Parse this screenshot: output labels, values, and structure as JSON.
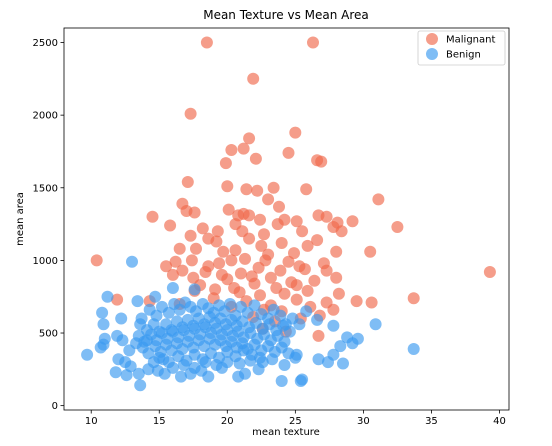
{
  "chart_data": {
    "type": "scatter",
    "title": "Mean Texture vs Mean Area",
    "xlabel": "mean texture",
    "ylabel": "mean area",
    "xlim": [
      8.0,
      40.7
    ],
    "ylim": [
      -30,
      2600
    ],
    "xticks": [
      "10",
      "15",
      "20",
      "25",
      "30",
      "35",
      "40"
    ],
    "yticks": [
      "0",
      "500",
      "1000",
      "1500",
      "2000",
      "2500"
    ],
    "grid": false,
    "legend_position": "top-right",
    "series": [
      {
        "name": "Malignant",
        "color": "#f0684b",
        "points": [
          [
            18.5,
            2500
          ],
          [
            26.3,
            2500
          ],
          [
            21.9,
            2250
          ],
          [
            17.3,
            2010
          ],
          [
            25.0,
            1880
          ],
          [
            21.6,
            1840
          ],
          [
            21.2,
            1770
          ],
          [
            24.5,
            1740
          ],
          [
            20.3,
            1760
          ],
          [
            22.1,
            1700
          ],
          [
            26.6,
            1690
          ],
          [
            26.9,
            1680
          ],
          [
            19.9,
            1670
          ],
          [
            17.1,
            1540
          ],
          [
            20.0,
            1510
          ],
          [
            21.4,
            1490
          ],
          [
            22.2,
            1480
          ],
          [
            23.4,
            1500
          ],
          [
            25.8,
            1490
          ],
          [
            16.7,
            1390
          ],
          [
            23.0,
            1420
          ],
          [
            31.1,
            1420
          ],
          [
            20.1,
            1350
          ],
          [
            23.8,
            1370
          ],
          [
            17.0,
            1340
          ],
          [
            17.6,
            1330
          ],
          [
            21.2,
            1320
          ],
          [
            14.5,
            1300
          ],
          [
            15.8,
            1240
          ],
          [
            21.6,
            1310
          ],
          [
            20.8,
            1310
          ],
          [
            22.4,
            1280
          ],
          [
            24.2,
            1280
          ],
          [
            25.1,
            1270
          ],
          [
            26.7,
            1310
          ],
          [
            27.3,
            1300
          ],
          [
            28.1,
            1260
          ],
          [
            29.2,
            1270
          ],
          [
            18.2,
            1220
          ],
          [
            19.3,
            1200
          ],
          [
            20.6,
            1250
          ],
          [
            21.1,
            1200
          ],
          [
            23.7,
            1250
          ],
          [
            25.5,
            1200
          ],
          [
            27.8,
            1230
          ],
          [
            28.4,
            1200
          ],
          [
            32.5,
            1230
          ],
          [
            17.3,
            1170
          ],
          [
            18.6,
            1150
          ],
          [
            19.2,
            1130
          ],
          [
            21.6,
            1150
          ],
          [
            22.7,
            1180
          ],
          [
            24.0,
            1120
          ],
          [
            26.6,
            1140
          ],
          [
            16.5,
            1080
          ],
          [
            17.7,
            1080
          ],
          [
            19.7,
            1060
          ],
          [
            20.6,
            1070
          ],
          [
            22.5,
            1100
          ],
          [
            23.0,
            1040
          ],
          [
            24.9,
            1050
          ],
          [
            25.9,
            1100
          ],
          [
            28.0,
            1060
          ],
          [
            30.5,
            1060
          ],
          [
            10.4,
            1000
          ],
          [
            16.2,
            990
          ],
          [
            17.4,
            1000
          ],
          [
            18.6,
            960
          ],
          [
            19.4,
            980
          ],
          [
            20.3,
            1000
          ],
          [
            21.3,
            1010
          ],
          [
            22.8,
            1000
          ],
          [
            24.5,
            990
          ],
          [
            25.3,
            960
          ],
          [
            27.1,
            980
          ],
          [
            15.5,
            960
          ],
          [
            16.7,
            930
          ],
          [
            18.4,
            920
          ],
          [
            19.6,
            900
          ],
          [
            21.0,
            910
          ],
          [
            22.3,
            950
          ],
          [
            23.9,
            930
          ],
          [
            25.7,
            940
          ],
          [
            27.3,
            930
          ],
          [
            39.3,
            920
          ],
          [
            16.0,
            900
          ],
          [
            17.5,
            880
          ],
          [
            20.0,
            870
          ],
          [
            21.8,
            890
          ],
          [
            23.2,
            880
          ],
          [
            24.7,
            850
          ],
          [
            26.4,
            860
          ],
          [
            28.0,
            880
          ],
          [
            18.0,
            830
          ],
          [
            19.1,
            800
          ],
          [
            20.5,
            810
          ],
          [
            22.0,
            840
          ],
          [
            23.6,
            810
          ],
          [
            25.1,
            830
          ],
          [
            17.6,
            790
          ],
          [
            20.9,
            780
          ],
          [
            22.4,
            760
          ],
          [
            24.2,
            770
          ],
          [
            25.9,
            790
          ],
          [
            28.2,
            770
          ],
          [
            11.9,
            730
          ],
          [
            14.3,
            720
          ],
          [
            16.5,
            700
          ],
          [
            19.0,
            740
          ],
          [
            21.4,
            720
          ],
          [
            23.2,
            690
          ],
          [
            25.1,
            730
          ],
          [
            27.3,
            710
          ],
          [
            29.5,
            720
          ],
          [
            30.6,
            710
          ],
          [
            33.7,
            740
          ],
          [
            20.3,
            680
          ],
          [
            22.7,
            660
          ],
          [
            24.0,
            650
          ],
          [
            26.1,
            680
          ],
          [
            27.8,
            660
          ],
          [
            21.9,
            610
          ],
          [
            23.5,
            580
          ],
          [
            25.4,
            600
          ],
          [
            26.8,
            620
          ],
          [
            22.6,
            530
          ],
          [
            24.3,
            510
          ],
          [
            26.7,
            480
          ]
        ]
      },
      {
        "name": "Benign",
        "color": "#3b9aef",
        "points": [
          [
            13.0,
            990
          ],
          [
            16.0,
            810
          ],
          [
            17.6,
            800
          ],
          [
            11.2,
            750
          ],
          [
            13.4,
            720
          ],
          [
            14.7,
            750
          ],
          [
            12.2,
            600
          ],
          [
            10.8,
            640
          ],
          [
            10.9,
            560
          ],
          [
            11.0,
            460
          ],
          [
            10.9,
            420
          ],
          [
            10.7,
            400
          ],
          [
            9.7,
            350
          ],
          [
            11.9,
            480
          ],
          [
            12.3,
            450
          ],
          [
            13.3,
            430
          ],
          [
            14.1,
            450
          ],
          [
            12.8,
            380
          ],
          [
            12.0,
            320
          ],
          [
            12.5,
            300
          ],
          [
            12.9,
            270
          ],
          [
            11.8,
            230
          ],
          [
            12.6,
            210
          ],
          [
            13.5,
            220
          ],
          [
            13.6,
            140
          ],
          [
            14.2,
            250
          ],
          [
            14.6,
            300
          ],
          [
            15.3,
            320
          ],
          [
            14.9,
            240
          ],
          [
            15.4,
            220
          ],
          [
            16.6,
            200
          ],
          [
            17.3,
            220
          ],
          [
            18.1,
            240
          ],
          [
            18.6,
            200
          ],
          [
            19.6,
            260
          ],
          [
            20.8,
            200
          ],
          [
            21.3,
            220
          ],
          [
            22.3,
            250
          ],
          [
            24.0,
            170
          ],
          [
            25.4,
            170
          ],
          [
            25.5,
            180
          ],
          [
            24.2,
            280
          ],
          [
            25.0,
            330
          ],
          [
            26.7,
            320
          ],
          [
            27.4,
            300
          ],
          [
            28.5,
            290
          ],
          [
            27.8,
            350
          ],
          [
            28.3,
            410
          ],
          [
            29.2,
            430
          ],
          [
            28.8,
            470
          ],
          [
            29.6,
            460
          ],
          [
            30.9,
            560
          ],
          [
            33.7,
            390
          ],
          [
            27.8,
            550
          ],
          [
            26.6,
            590
          ],
          [
            25.8,
            650
          ],
          [
            13.7,
            600
          ],
          [
            14.3,
            660
          ],
          [
            14.8,
            620
          ],
          [
            15.2,
            680
          ],
          [
            15.7,
            640
          ],
          [
            16.1,
            700
          ],
          [
            16.5,
            660
          ],
          [
            16.9,
            710
          ],
          [
            17.3,
            680
          ],
          [
            17.7,
            650
          ],
          [
            18.2,
            700
          ],
          [
            18.6,
            670
          ],
          [
            19.0,
            640
          ],
          [
            19.4,
            690
          ],
          [
            19.8,
            650
          ],
          [
            20.2,
            700
          ],
          [
            20.6,
            620
          ],
          [
            21.0,
            680
          ],
          [
            21.5,
            640
          ],
          [
            22.0,
            690
          ],
          [
            22.5,
            630
          ],
          [
            23.0,
            600
          ],
          [
            23.4,
            660
          ],
          [
            23.9,
            620
          ],
          [
            24.3,
            560
          ],
          [
            24.8,
            600
          ],
          [
            25.3,
            560
          ],
          [
            13.6,
            560
          ],
          [
            14.1,
            520
          ],
          [
            14.6,
            560
          ],
          [
            15.0,
            510
          ],
          [
            15.5,
            560
          ],
          [
            15.9,
            520
          ],
          [
            16.3,
            580
          ],
          [
            16.7,
            540
          ],
          [
            17.1,
            590
          ],
          [
            17.5,
            550
          ],
          [
            17.9,
            600
          ],
          [
            18.3,
            560
          ],
          [
            18.7,
            610
          ],
          [
            19.1,
            570
          ],
          [
            19.5,
            600
          ],
          [
            19.9,
            560
          ],
          [
            20.3,
            590
          ],
          [
            20.7,
            550
          ],
          [
            21.1,
            580
          ],
          [
            21.6,
            540
          ],
          [
            22.1,
            570
          ],
          [
            22.6,
            530
          ],
          [
            23.1,
            560
          ],
          [
            23.6,
            520
          ],
          [
            24.1,
            550
          ],
          [
            24.6,
            510
          ],
          [
            13.5,
            480
          ],
          [
            13.9,
            440
          ],
          [
            14.4,
            490
          ],
          [
            14.8,
            450
          ],
          [
            15.2,
            500
          ],
          [
            15.6,
            460
          ],
          [
            16.0,
            510
          ],
          [
            16.4,
            470
          ],
          [
            16.8,
            520
          ],
          [
            17.2,
            480
          ],
          [
            17.6,
            530
          ],
          [
            18.0,
            490
          ],
          [
            18.4,
            540
          ],
          [
            18.8,
            500
          ],
          [
            19.2,
            530
          ],
          [
            19.6,
            490
          ],
          [
            20.0,
            520
          ],
          [
            20.4,
            480
          ],
          [
            20.8,
            510
          ],
          [
            21.2,
            470
          ],
          [
            21.7,
            500
          ],
          [
            22.2,
            460
          ],
          [
            22.7,
            490
          ],
          [
            23.2,
            450
          ],
          [
            23.7,
            480
          ],
          [
            24.2,
            440
          ],
          [
            13.8,
            400
          ],
          [
            14.2,
            360
          ],
          [
            14.7,
            410
          ],
          [
            15.1,
            370
          ],
          [
            15.5,
            420
          ],
          [
            15.9,
            380
          ],
          [
            16.3,
            430
          ],
          [
            16.7,
            390
          ],
          [
            17.1,
            440
          ],
          [
            17.5,
            400
          ],
          [
            17.9,
            450
          ],
          [
            18.3,
            410
          ],
          [
            18.7,
            460
          ],
          [
            19.1,
            420
          ],
          [
            19.5,
            450
          ],
          [
            19.9,
            410
          ],
          [
            20.3,
            440
          ],
          [
            20.7,
            400
          ],
          [
            21.1,
            430
          ],
          [
            21.5,
            390
          ],
          [
            22.0,
            420
          ],
          [
            22.5,
            380
          ],
          [
            23.0,
            410
          ],
          [
            23.5,
            370
          ],
          [
            24.0,
            400
          ],
          [
            24.5,
            360
          ],
          [
            25.1,
            350
          ],
          [
            15.0,
            330
          ],
          [
            15.7,
            300
          ],
          [
            16.4,
            340
          ],
          [
            17.0,
            310
          ],
          [
            17.6,
            350
          ],
          [
            18.2,
            320
          ],
          [
            18.8,
            360
          ],
          [
            19.4,
            330
          ],
          [
            20.0,
            370
          ],
          [
            20.6,
            340
          ],
          [
            21.2,
            380
          ],
          [
            21.8,
            350
          ],
          [
            22.4,
            330
          ],
          [
            23.3,
            320
          ],
          [
            16.0,
            260
          ],
          [
            16.8,
            280
          ],
          [
            17.6,
            260
          ],
          [
            18.4,
            300
          ],
          [
            19.2,
            280
          ],
          [
            20.0,
            300
          ],
          [
            20.9,
            290
          ],
          [
            21.7,
            310
          ],
          [
            22.6,
            300
          ]
        ]
      }
    ]
  }
}
